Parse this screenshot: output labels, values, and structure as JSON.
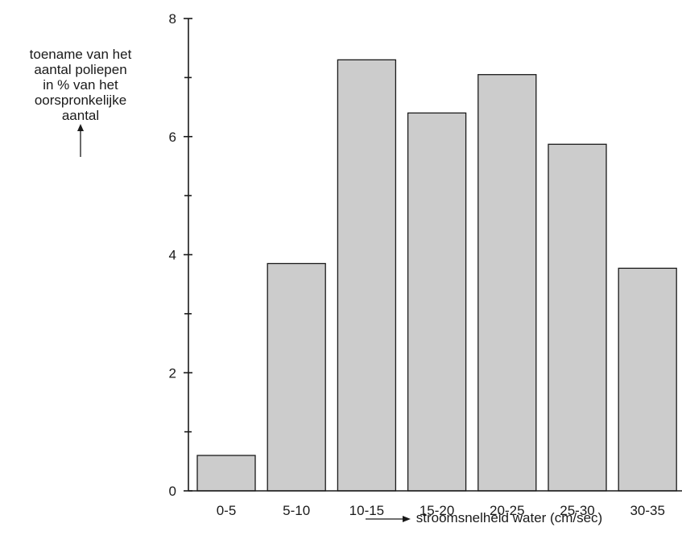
{
  "chart_data": {
    "type": "bar",
    "categories": [
      "0-5",
      "5-10",
      "10-15",
      "15-20",
      "20-25",
      "25-30",
      "30-35"
    ],
    "values": [
      0.6,
      3.85,
      7.3,
      6.4,
      7.05,
      5.87,
      3.77
    ],
    "ylabel_lines": [
      "toename van het",
      "aantal poliepen",
      "in % van het",
      "oorspronkelijke",
      "aantal"
    ],
    "xlabel": "stroomsnelheid water (cm/sec)",
    "ylim": [
      0,
      8
    ],
    "yticks": [
      0,
      2,
      4,
      6,
      8
    ],
    "minor_yticks": [
      1,
      3,
      5,
      7
    ],
    "grid": false,
    "bar_color": "#cccccc",
    "edge_color": "#1a1a1a"
  }
}
